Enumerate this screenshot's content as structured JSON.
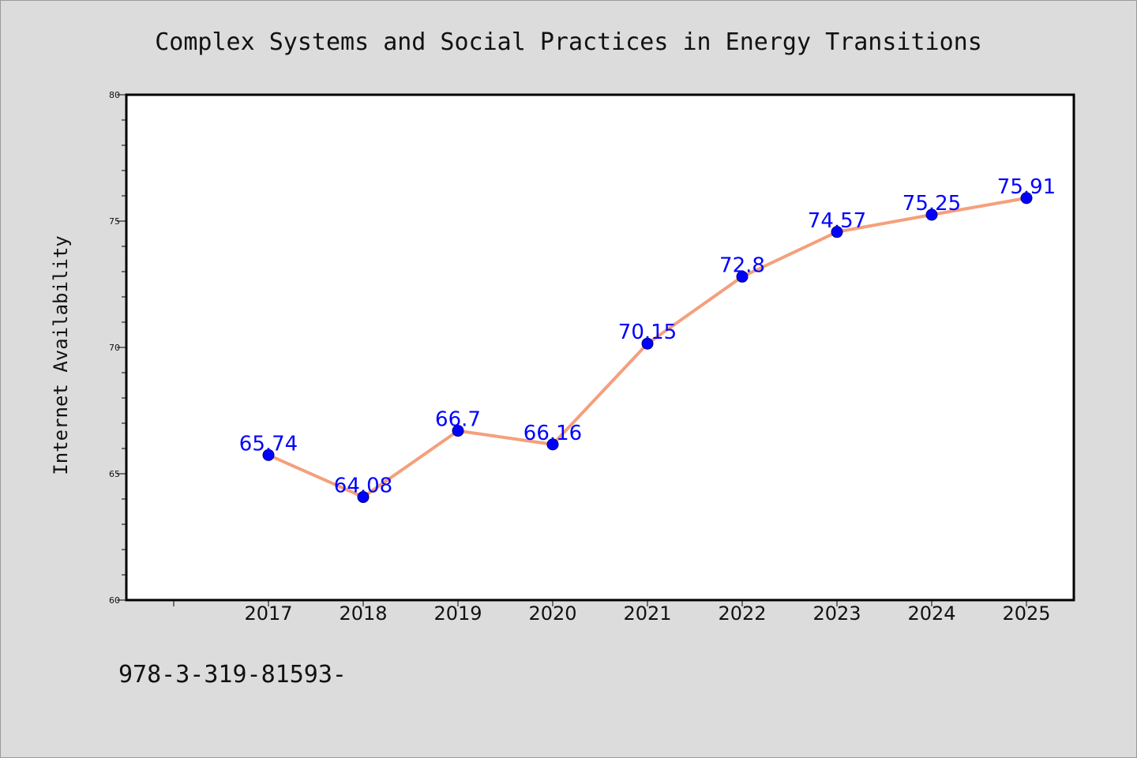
{
  "chart_data": {
    "type": "line",
    "title": "Complex Systems and Social Practices in Energy Transitions",
    "xlabel": "",
    "ylabel": "Internet Availability",
    "categories": [
      "2017",
      "2018",
      "2019",
      "2020",
      "2021",
      "2022",
      "2023",
      "2024",
      "2025"
    ],
    "series": [
      {
        "values": [
          65.74,
          64.08,
          66.7,
          66.16,
          70.15,
          72.8,
          74.57,
          75.25,
          75.91
        ],
        "labels": [
          "65.74",
          "64.08",
          "66.7",
          "66.16",
          "70.15",
          "72.8",
          "74.57",
          "75.25",
          "75.91"
        ]
      }
    ],
    "ylim": [
      60,
      80
    ],
    "yticks": [
      "60",
      "65",
      "70",
      "75",
      "80"
    ],
    "grid": false,
    "legend": "none",
    "colors": {
      "line": "#f4a07c",
      "marker": "#0000ff",
      "label": "#0000ff",
      "plot_background": "#ffffff",
      "page_background": "#dcdcdc"
    }
  },
  "footer": {
    "text": "978-3-319-81593-"
  }
}
